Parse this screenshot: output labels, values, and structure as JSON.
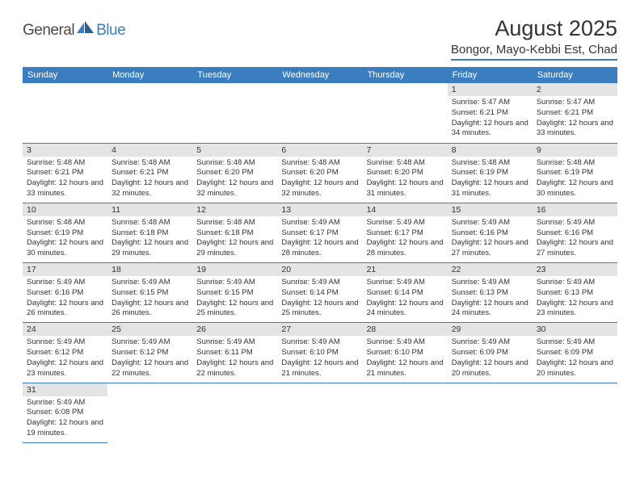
{
  "logo": {
    "part1": "General",
    "part2": "Blue"
  },
  "title": "August 2025",
  "location": "Bongor, Mayo-Kebbi Est, Chad",
  "colors": {
    "header_bg": "#3b7ec0",
    "header_text": "#ffffff",
    "daynum_bg": "#e4e4e4",
    "border": "#3b7ec0",
    "text": "#333333",
    "logo_dark": "#4a4a4a",
    "logo_blue": "#3b7ec0"
  },
  "weekdays": [
    "Sunday",
    "Monday",
    "Tuesday",
    "Wednesday",
    "Thursday",
    "Friday",
    "Saturday"
  ],
  "weeks": [
    [
      null,
      null,
      null,
      null,
      null,
      {
        "n": "1",
        "sr": "5:47 AM",
        "ss": "6:21 PM",
        "dl": "12 hours and 34 minutes."
      },
      {
        "n": "2",
        "sr": "5:47 AM",
        "ss": "6:21 PM",
        "dl": "12 hours and 33 minutes."
      }
    ],
    [
      {
        "n": "3",
        "sr": "5:48 AM",
        "ss": "6:21 PM",
        "dl": "12 hours and 33 minutes."
      },
      {
        "n": "4",
        "sr": "5:48 AM",
        "ss": "6:21 PM",
        "dl": "12 hours and 32 minutes."
      },
      {
        "n": "5",
        "sr": "5:48 AM",
        "ss": "6:20 PM",
        "dl": "12 hours and 32 minutes."
      },
      {
        "n": "6",
        "sr": "5:48 AM",
        "ss": "6:20 PM",
        "dl": "12 hours and 32 minutes."
      },
      {
        "n": "7",
        "sr": "5:48 AM",
        "ss": "6:20 PM",
        "dl": "12 hours and 31 minutes."
      },
      {
        "n": "8",
        "sr": "5:48 AM",
        "ss": "6:19 PM",
        "dl": "12 hours and 31 minutes."
      },
      {
        "n": "9",
        "sr": "5:48 AM",
        "ss": "6:19 PM",
        "dl": "12 hours and 30 minutes."
      }
    ],
    [
      {
        "n": "10",
        "sr": "5:48 AM",
        "ss": "6:19 PM",
        "dl": "12 hours and 30 minutes."
      },
      {
        "n": "11",
        "sr": "5:48 AM",
        "ss": "6:18 PM",
        "dl": "12 hours and 29 minutes."
      },
      {
        "n": "12",
        "sr": "5:48 AM",
        "ss": "6:18 PM",
        "dl": "12 hours and 29 minutes."
      },
      {
        "n": "13",
        "sr": "5:49 AM",
        "ss": "6:17 PM",
        "dl": "12 hours and 28 minutes."
      },
      {
        "n": "14",
        "sr": "5:49 AM",
        "ss": "6:17 PM",
        "dl": "12 hours and 28 minutes."
      },
      {
        "n": "15",
        "sr": "5:49 AM",
        "ss": "6:16 PM",
        "dl": "12 hours and 27 minutes."
      },
      {
        "n": "16",
        "sr": "5:49 AM",
        "ss": "6:16 PM",
        "dl": "12 hours and 27 minutes."
      }
    ],
    [
      {
        "n": "17",
        "sr": "5:49 AM",
        "ss": "6:16 PM",
        "dl": "12 hours and 26 minutes."
      },
      {
        "n": "18",
        "sr": "5:49 AM",
        "ss": "6:15 PM",
        "dl": "12 hours and 26 minutes."
      },
      {
        "n": "19",
        "sr": "5:49 AM",
        "ss": "6:15 PM",
        "dl": "12 hours and 25 minutes."
      },
      {
        "n": "20",
        "sr": "5:49 AM",
        "ss": "6:14 PM",
        "dl": "12 hours and 25 minutes."
      },
      {
        "n": "21",
        "sr": "5:49 AM",
        "ss": "6:14 PM",
        "dl": "12 hours and 24 minutes."
      },
      {
        "n": "22",
        "sr": "5:49 AM",
        "ss": "6:13 PM",
        "dl": "12 hours and 24 minutes."
      },
      {
        "n": "23",
        "sr": "5:49 AM",
        "ss": "6:13 PM",
        "dl": "12 hours and 23 minutes."
      }
    ],
    [
      {
        "n": "24",
        "sr": "5:49 AM",
        "ss": "6:12 PM",
        "dl": "12 hours and 23 minutes."
      },
      {
        "n": "25",
        "sr": "5:49 AM",
        "ss": "6:12 PM",
        "dl": "12 hours and 22 minutes."
      },
      {
        "n": "26",
        "sr": "5:49 AM",
        "ss": "6:11 PM",
        "dl": "12 hours and 22 minutes."
      },
      {
        "n": "27",
        "sr": "5:49 AM",
        "ss": "6:10 PM",
        "dl": "12 hours and 21 minutes."
      },
      {
        "n": "28",
        "sr": "5:49 AM",
        "ss": "6:10 PM",
        "dl": "12 hours and 21 minutes."
      },
      {
        "n": "29",
        "sr": "5:49 AM",
        "ss": "6:09 PM",
        "dl": "12 hours and 20 minutes."
      },
      {
        "n": "30",
        "sr": "5:49 AM",
        "ss": "6:09 PM",
        "dl": "12 hours and 20 minutes."
      }
    ],
    [
      {
        "n": "31",
        "sr": "5:49 AM",
        "ss": "6:08 PM",
        "dl": "12 hours and 19 minutes."
      },
      null,
      null,
      null,
      null,
      null,
      null
    ]
  ],
  "labels": {
    "sunrise": "Sunrise:",
    "sunset": "Sunset:",
    "daylight": "Daylight:"
  }
}
